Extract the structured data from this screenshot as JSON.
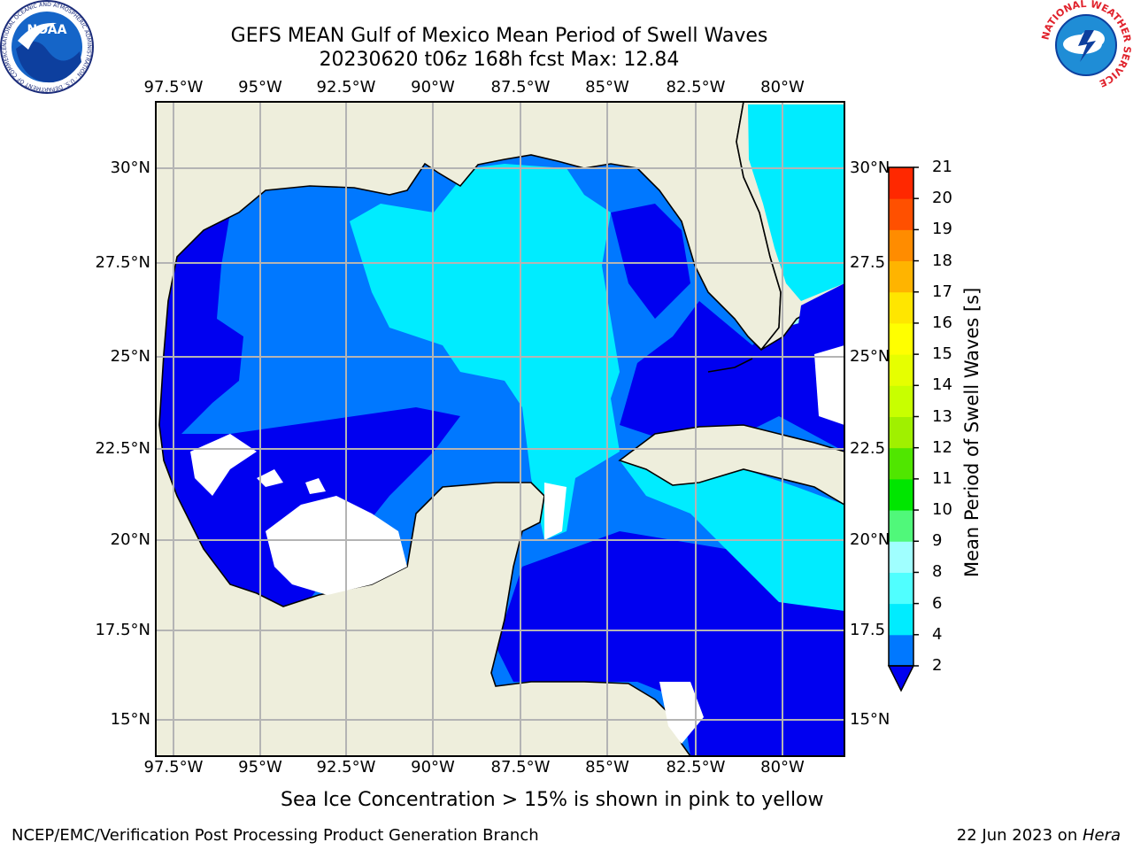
{
  "header": {
    "title_line1": "GEFS MEAN Gulf of Mexico Mean Period of Swell Waves",
    "title_line2": "20230620 t06z 168h fcst   Max: 12.84"
  },
  "logos": {
    "noaa": {
      "text": "NOAA",
      "ring_text": "NATIONAL OCEANIC AND ATMOSPHERIC ADMINISTRATION · U.S. DEPARTMENT OF COMMERCE"
    },
    "nws": {
      "ring_text": "NATIONAL WEATHER SERVICE"
    }
  },
  "map": {
    "lon_labels": [
      "97.5°W",
      "95°W",
      "92.5°W",
      "90°W",
      "87.5°W",
      "85°W",
      "82.5°W",
      "80°W"
    ],
    "lat_labels_left": [
      "30°N",
      "27.5°N",
      "25°N",
      "22.5°N",
      "20°N",
      "17.5°N",
      "15°N"
    ],
    "lat_labels_right": [
      "30°N",
      "27.5",
      "25°N",
      "22.5",
      "20°N",
      "17.5",
      "15°N"
    ],
    "colors": {
      "land": "#eeeedc",
      "band_0_2": "#0000f0",
      "band_2_4": "#0078ff",
      "band_4_6": "#00ecff",
      "band_6_8": "#50ffff",
      "band_8_9": "#a0ffff",
      "band_9_10": "#50f87a",
      "band_10_11": "#00e600",
      "band_11_12": "#50e600",
      "band_12_13": "#c8ff00",
      "grid": "#b4b4b4"
    }
  },
  "colorbar": {
    "label": "Mean Period of Swell Waves [s]",
    "ticks": [
      "2",
      "4",
      "6",
      "8",
      "9",
      "10",
      "11",
      "12",
      "13",
      "14",
      "15",
      "16",
      "17",
      "18",
      "19",
      "20",
      "21"
    ],
    "colors": [
      "#0078ff",
      "#00ecff",
      "#50ffff",
      "#a0ffff",
      "#50f87a",
      "#00e600",
      "#50e600",
      "#a0f000",
      "#c8ff00",
      "#e6ff00",
      "#ffff00",
      "#ffe600",
      "#ffb400",
      "#ff8c00",
      "#ff5000",
      "#ff2800",
      "#ff0000"
    ],
    "extend_color": "#0000f0"
  },
  "note": "Sea Ice Concentration > 15% is shown in pink to yellow",
  "footer": {
    "left": "NCEP/EMC/Verification Post Processing Product Generation Branch",
    "date": "22 Jun 2023 on ",
    "machine": "Hera"
  }
}
